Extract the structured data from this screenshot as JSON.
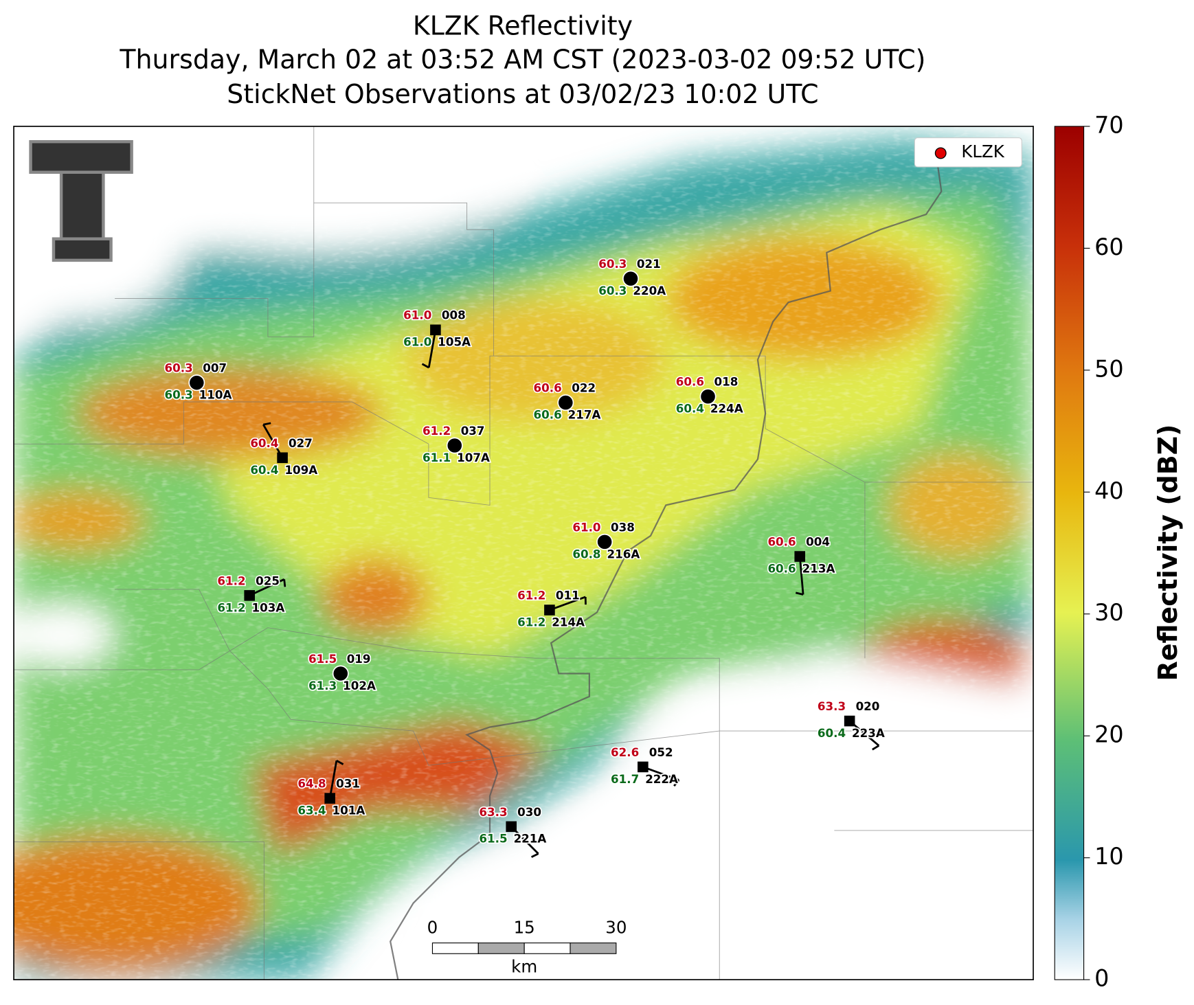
{
  "title": [
    "KLZK Reflectivity",
    "Thursday, March 02 at 03:52 AM CST (2023-03-02 09:52 UTC)",
    "StickNet Observations at 03/02/23 10:02 UTC"
  ],
  "legend": {
    "label": "KLZK",
    "color": "#e00000"
  },
  "colorbar": {
    "label": "Reflectivity (dBZ)",
    "lim": [
      0,
      70
    ],
    "ticks": [
      0,
      10,
      20,
      30,
      40,
      50,
      60,
      70
    ]
  },
  "scale_bar": {
    "ticks": [
      0,
      15,
      30
    ],
    "unit": "km"
  },
  "stations": [
    {
      "id": "007",
      "code": "110A",
      "temp": "60.3",
      "dewpoint": "60.3",
      "marker": "circle"
    },
    {
      "id": "008",
      "code": "105A",
      "temp": "61.0",
      "dewpoint": "61.0",
      "marker": "square"
    },
    {
      "id": "021",
      "code": "220A",
      "temp": "60.3",
      "dewpoint": "60.3",
      "marker": "circle"
    },
    {
      "id": "022",
      "code": "217A",
      "temp": "60.6",
      "dewpoint": "60.6",
      "marker": "circle"
    },
    {
      "id": "018",
      "code": "224A",
      "temp": "60.6",
      "dewpoint": "60.4",
      "marker": "circle"
    },
    {
      "id": "037",
      "code": "107A",
      "temp": "61.2",
      "dewpoint": "61.1",
      "marker": "circle"
    },
    {
      "id": "027",
      "code": "109A",
      "temp": "60.4",
      "dewpoint": "60.4",
      "marker": "square"
    },
    {
      "id": "038",
      "code": "216A",
      "temp": "61.0",
      "dewpoint": "60.8",
      "marker": "circle"
    },
    {
      "id": "004",
      "code": "213A",
      "temp": "60.6",
      "dewpoint": "60.6",
      "marker": "square"
    },
    {
      "id": "025",
      "code": "103A",
      "temp": "61.2",
      "dewpoint": "61.2",
      "marker": "square"
    },
    {
      "id": "011",
      "code": "214A",
      "temp": "61.2",
      "dewpoint": "61.2",
      "marker": "square"
    },
    {
      "id": "019",
      "code": "102A",
      "temp": "61.5",
      "dewpoint": "61.3",
      "marker": "circle"
    },
    {
      "id": "020",
      "code": "223A",
      "temp": "63.3",
      "dewpoint": "60.4",
      "marker": "square"
    },
    {
      "id": "052",
      "code": "222A",
      "temp": "62.6",
      "dewpoint": "61.7",
      "marker": "square"
    },
    {
      "id": "031",
      "code": "101A",
      "temp": "64.8",
      "dewpoint": "63.4",
      "marker": "square"
    },
    {
      "id": "030",
      "code": "221A",
      "temp": "63.3",
      "dewpoint": "61.5",
      "marker": "square"
    }
  ]
}
